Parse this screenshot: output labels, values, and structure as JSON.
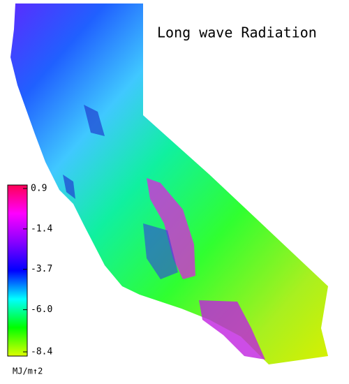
{
  "title": "Long wave Radiation",
  "colorbar": {
    "lim": [
      -8.4,
      0.9
    ],
    "ticks": [
      0.9,
      -1.4,
      -3.7,
      {
        "value": -6,
        "label": "-6.0"
      },
      -8.4
    ],
    "unit": "MJ/m↑2",
    "colors": [
      "#ddff00",
      "#00ff00",
      "#00ffff",
      "#0000ff",
      "#8800ff",
      "#ff00ff",
      "#ff0055"
    ]
  }
}
